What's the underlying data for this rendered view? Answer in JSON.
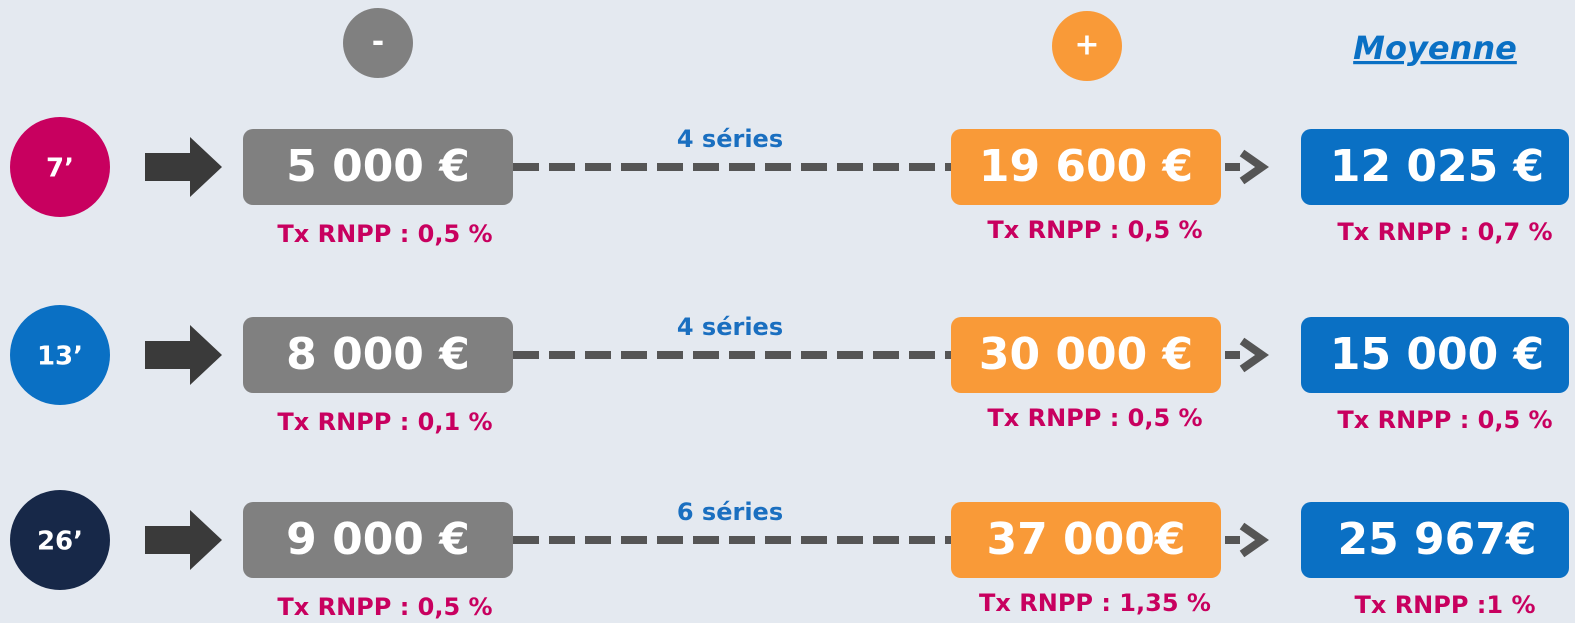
{
  "header": {
    "minus": "-",
    "plus": "+",
    "average": "Moyenne"
  },
  "rows": [
    {
      "duration": "7’",
      "color": "#c8005f",
      "min_value": "5 000 €",
      "min_rate": "Tx RNPP : 0,5 %",
      "series": "4 séries",
      "max_value": "19 600 €",
      "max_rate": "Tx RNPP : 0,5 %",
      "avg_value": "12 025 €",
      "avg_rate": "Tx RNPP : 0,7 %"
    },
    {
      "duration": "13’",
      "color": "#0a70c4",
      "min_value": "8 000 €",
      "min_rate": "Tx RNPP : 0,1 %",
      "series": "4 séries",
      "max_value": "30 000 €",
      "max_rate": "Tx RNPP : 0,5 %",
      "avg_value": "15 000 €",
      "avg_rate": "Tx RNPP : 0,5 %"
    },
    {
      "duration": "26’",
      "color": "#172848",
      "min_value": "9 000 €",
      "min_rate": "Tx RNPP : 0,5 %",
      "series": "6 séries",
      "max_value": "37 000€",
      "max_rate": "Tx RNPP : 1,35 %",
      "avg_value": "25 967€",
      "avg_rate": "Tx RNPP :1 %"
    }
  ]
}
